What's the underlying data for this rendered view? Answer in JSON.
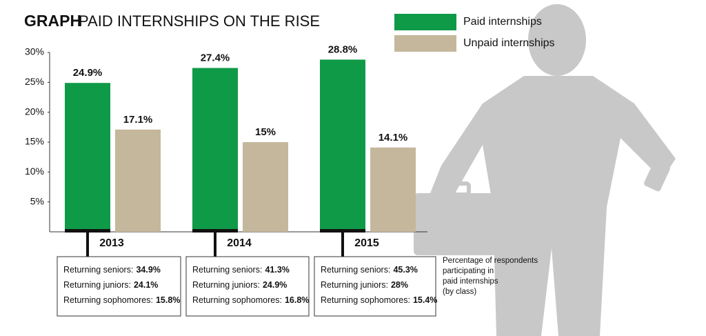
{
  "chart_data": {
    "type": "bar",
    "label": "GRAPH",
    "title": "PAID INTERNSHIPS ON THE RISE",
    "categories": [
      "2013",
      "2014",
      "2015"
    ],
    "series": [
      {
        "name": "Paid internships",
        "color": "#0f9a48",
        "values": [
          24.9,
          27.4,
          28.8
        ],
        "value_labels": [
          "24.9%",
          "27.4%",
          "28.8%"
        ]
      },
      {
        "name": "Unpaid internships",
        "color": "#c5b79c",
        "values": [
          17.1,
          15,
          14.1
        ],
        "value_labels": [
          "17.1%",
          "15%",
          "14.1%"
        ]
      }
    ],
    "ylim": [
      0,
      30
    ],
    "yticks": [
      {
        "value": 5,
        "label": "5%"
      },
      {
        "value": 10,
        "label": "10%"
      },
      {
        "value": 15,
        "label": "15%"
      },
      {
        "value": 20,
        "label": "20%"
      },
      {
        "value": 25,
        "label": "25%"
      },
      {
        "value": 30,
        "label": "30%"
      }
    ],
    "legend": "top-right",
    "class_breakdown": [
      [
        {
          "label": "Returning seniors:",
          "value": "34.9%"
        },
        {
          "label": "Returning juniors:",
          "value": "24.1%"
        },
        {
          "label": "Returning sophomores:",
          "value": "15.8%"
        }
      ],
      [
        {
          "label": "Returning seniors:",
          "value": "41.3%"
        },
        {
          "label": "Returning juniors:",
          "value": "24.9%"
        },
        {
          "label": "Returning sophomores:",
          "value": "16.8%"
        }
      ],
      [
        {
          "label": "Returning seniors:",
          "value": "45.3%"
        },
        {
          "label": "Returning juniors:",
          "value": "28%"
        },
        {
          "label": "Returning sophomores:",
          "value": "15.4%"
        }
      ]
    ],
    "note": [
      "Percentage of respondents",
      "participating in",
      "paid internships",
      "(by class)"
    ]
  }
}
